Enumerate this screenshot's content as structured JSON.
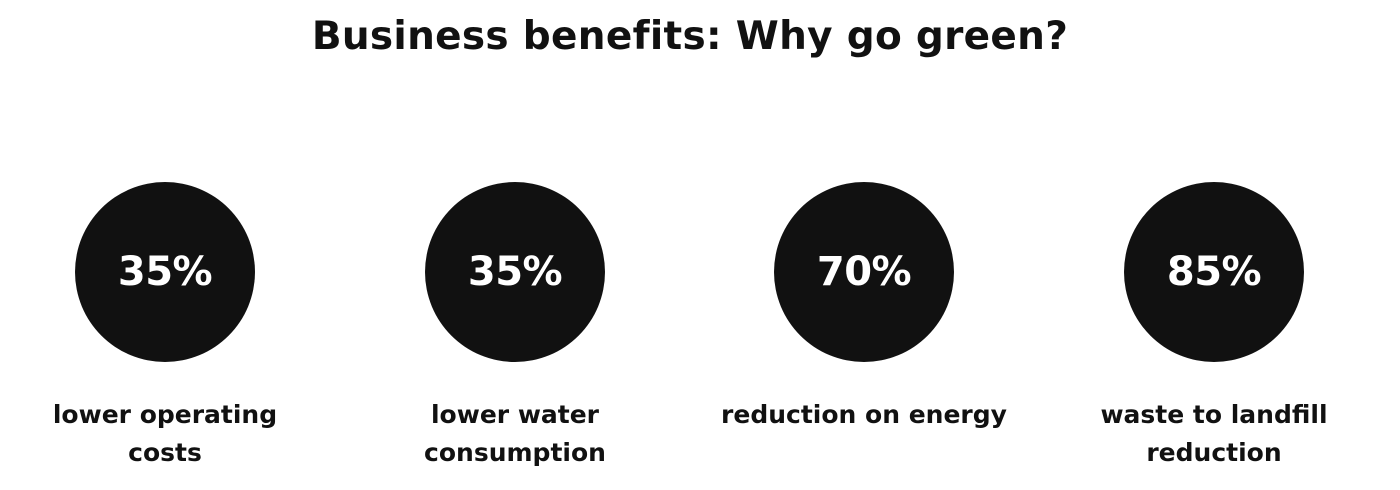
{
  "page": {
    "title": "Business benefits: Why go green?"
  },
  "stats": [
    {
      "value": "35%",
      "label_lines": [
        "lower operating",
        "costs"
      ]
    },
    {
      "value": "35%",
      "label_lines": [
        "lower water",
        "consumption"
      ]
    },
    {
      "value": "70%",
      "label_lines": [
        "reduction on energy"
      ]
    },
    {
      "value": "85%",
      "label_lines": [
        "waste to landfill",
        "reduction"
      ]
    }
  ],
  "colors": {
    "circle": "#111111",
    "circle_text": "#ffffff",
    "text": "#111111",
    "background": "#ffffff"
  }
}
